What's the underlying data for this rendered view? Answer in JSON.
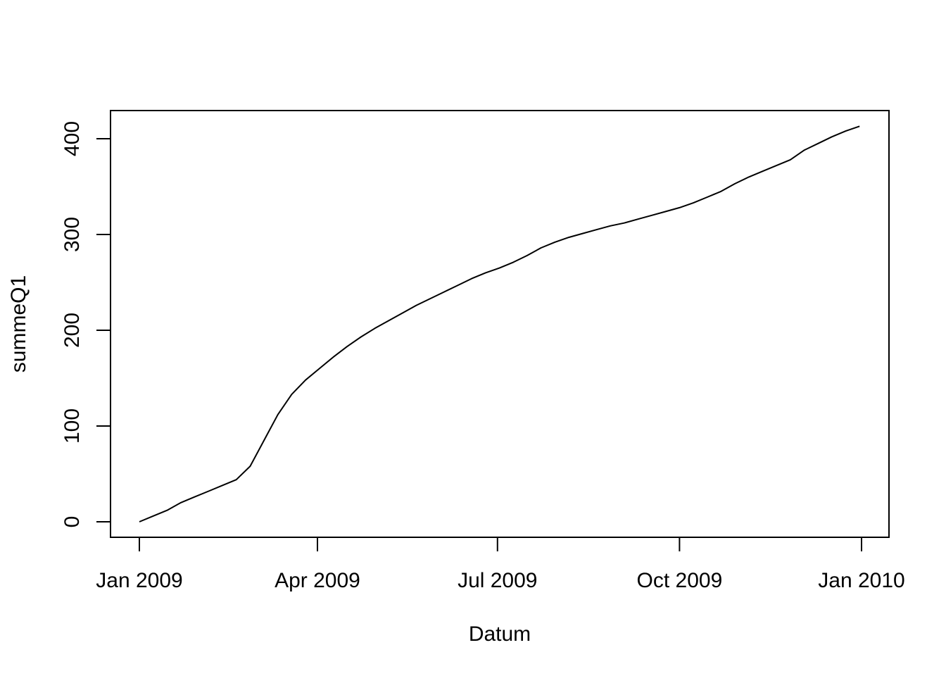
{
  "chart_data": {
    "type": "line",
    "title": "",
    "xlabel": "Datum",
    "ylabel": "summeQ1",
    "xlim": [
      "2009-01-01",
      "2010-01-01"
    ],
    "ylim": [
      0,
      400
    ],
    "grid": false,
    "legend": "none",
    "line_color": "#000000",
    "x_ticks": [
      {
        "date": "2009-01-01",
        "label": "Jan 2009"
      },
      {
        "date": "2009-04-01",
        "label": "Apr 2009"
      },
      {
        "date": "2009-07-01",
        "label": "Jul 2009"
      },
      {
        "date": "2009-10-01",
        "label": "Oct 2009"
      },
      {
        "date": "2010-01-01",
        "label": "Jan 2010"
      }
    ],
    "y_ticks": [
      {
        "value": 0,
        "label": "0"
      },
      {
        "value": 100,
        "label": "100"
      },
      {
        "value": 200,
        "label": "200"
      },
      {
        "value": 300,
        "label": "300"
      },
      {
        "value": 400,
        "label": "400"
      }
    ],
    "series": [
      {
        "x": [
          "2009-01-01",
          "2009-01-08",
          "2009-01-15",
          "2009-01-22",
          "2009-01-29",
          "2009-02-05",
          "2009-02-12",
          "2009-02-19",
          "2009-02-26",
          "2009-03-05",
          "2009-03-12",
          "2009-03-19",
          "2009-03-26",
          "2009-04-02",
          "2009-04-09",
          "2009-04-16",
          "2009-04-23",
          "2009-04-30",
          "2009-05-07",
          "2009-05-14",
          "2009-05-21",
          "2009-05-28",
          "2009-06-04",
          "2009-06-11",
          "2009-06-18",
          "2009-06-25",
          "2009-07-02",
          "2009-07-09",
          "2009-07-16",
          "2009-07-23",
          "2009-07-30",
          "2009-08-06",
          "2009-08-13",
          "2009-08-20",
          "2009-08-27",
          "2009-09-03",
          "2009-09-10",
          "2009-09-17",
          "2009-09-24",
          "2009-10-01",
          "2009-10-08",
          "2009-10-15",
          "2009-10-22",
          "2009-10-29",
          "2009-11-05",
          "2009-11-12",
          "2009-11-19",
          "2009-11-26",
          "2009-12-03",
          "2009-12-10",
          "2009-12-17",
          "2009-12-24",
          "2009-12-31"
        ],
        "y": [
          0,
          6,
          12,
          20,
          26,
          32,
          38,
          44,
          58,
          85,
          112,
          133,
          148,
          160,
          172,
          183,
          193,
          202,
          210,
          218,
          226,
          233,
          240,
          247,
          254,
          260,
          265,
          271,
          278,
          286,
          292,
          297,
          301,
          305,
          309,
          312,
          316,
          320,
          324,
          328,
          333,
          339,
          345,
          353,
          360,
          366,
          372,
          378,
          388,
          395,
          402,
          408,
          413
        ]
      }
    ]
  }
}
